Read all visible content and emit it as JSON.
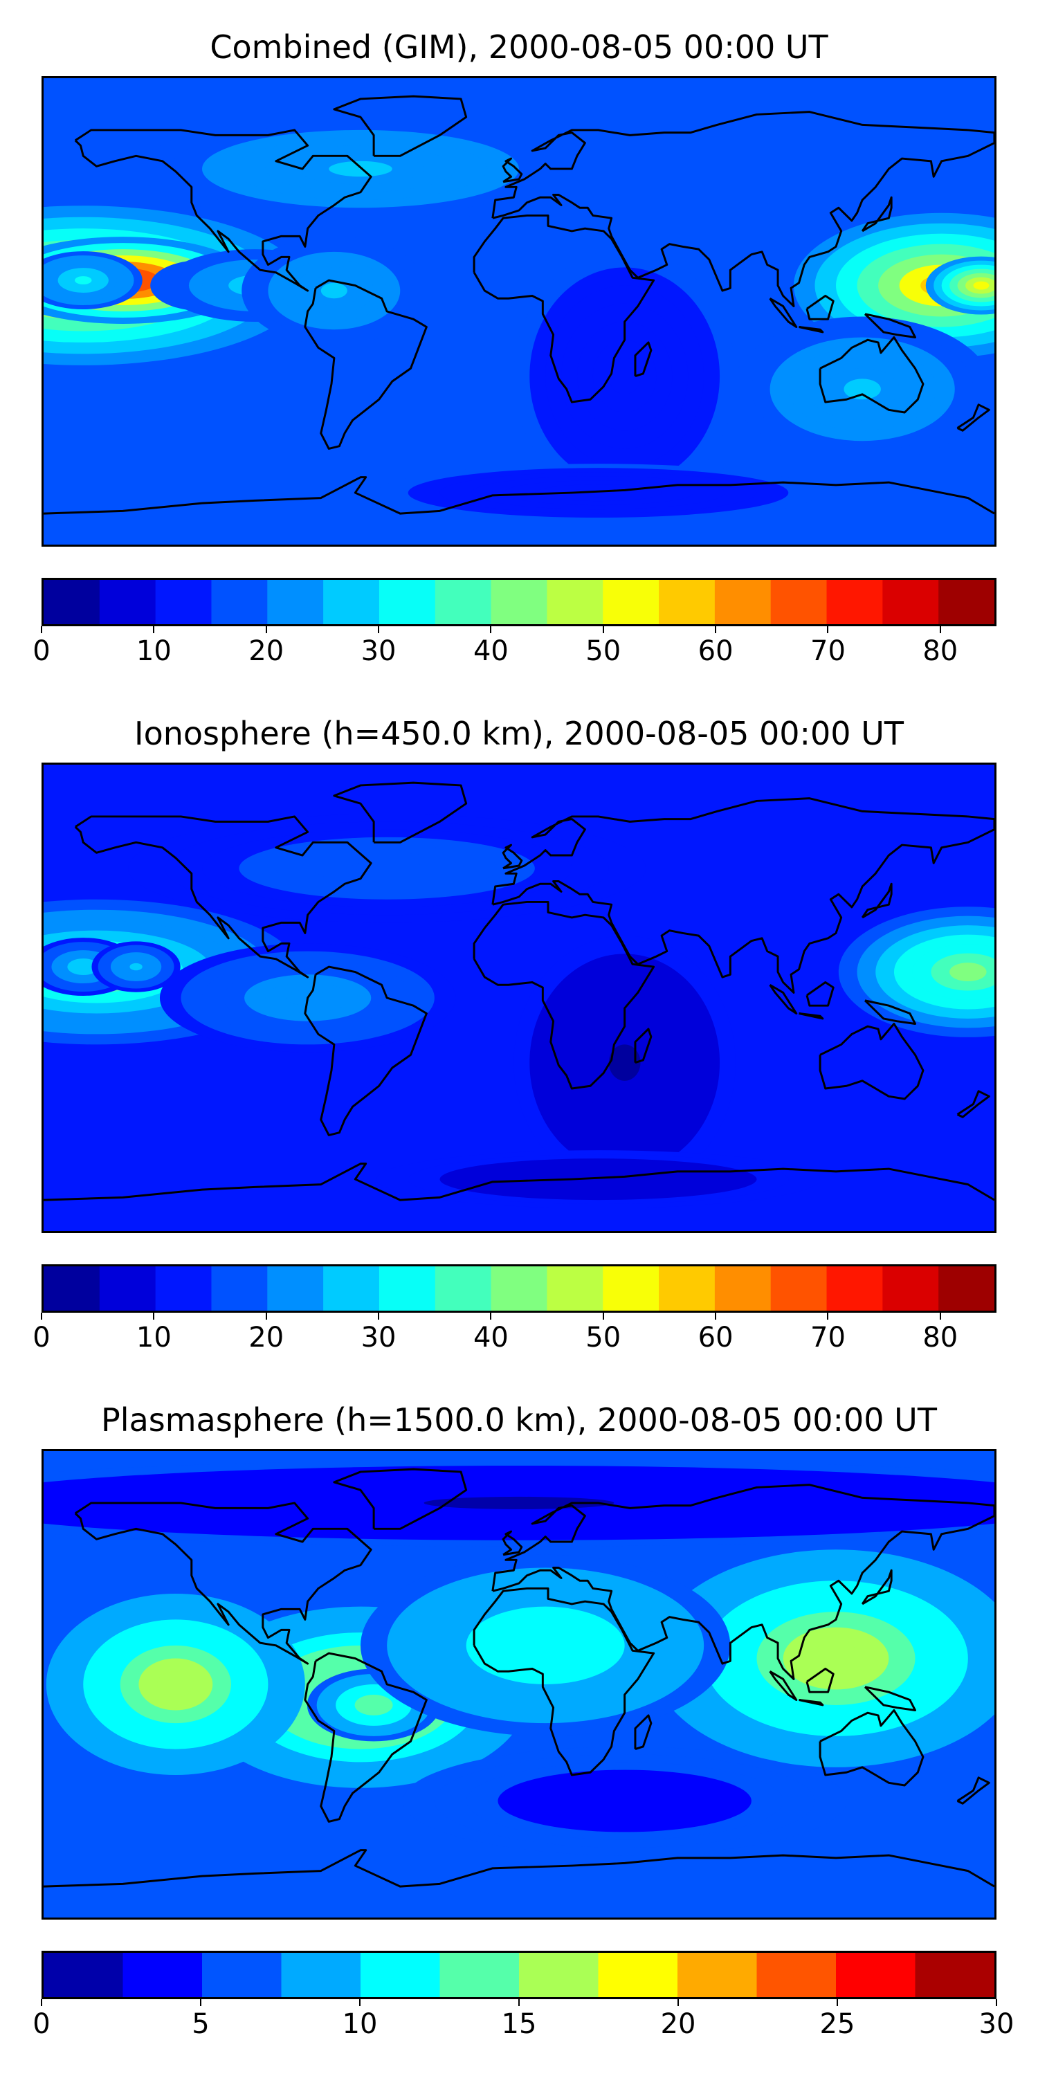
{
  "panels": [
    {
      "title": "Combined (GIM), 2000-08-05 00:00 UT",
      "colorbar": {
        "min": 0,
        "max": 85,
        "levels": [
          0,
          5,
          10,
          15,
          20,
          25,
          30,
          35,
          40,
          45,
          50,
          55,
          60,
          65,
          70,
          75,
          80,
          85
        ],
        "ticks": [
          0,
          10,
          20,
          30,
          40,
          50,
          60,
          70,
          80
        ]
      },
      "background": 16,
      "blobs": [
        {
          "lon": -165,
          "lat": 10,
          "rx": 60,
          "ry": 22,
          "v": 40
        },
        {
          "lon": -150,
          "lat": 12,
          "rx": 35,
          "ry": 12,
          "v": 62
        },
        {
          "lon": -165,
          "lat": 12,
          "rx": 16,
          "ry": 8,
          "v": 14
        },
        {
          "lon": -120,
          "lat": 10,
          "rx": 14,
          "ry": 7,
          "v": 10
        },
        {
          "lon": -100,
          "lat": 10,
          "rx": 25,
          "ry": 10,
          "v": 12
        },
        {
          "lon": -70,
          "lat": 8,
          "rx": 25,
          "ry": 15,
          "v": 10
        },
        {
          "lon": 160,
          "lat": 10,
          "rx": 40,
          "ry": 20,
          "v": 40
        },
        {
          "lon": 175,
          "lat": 10,
          "rx": 15,
          "ry": 8,
          "v": 35
        },
        {
          "lon": -60,
          "lat": 55,
          "rx": 60,
          "ry": 15,
          "v": 10
        },
        {
          "lon": 130,
          "lat": -30,
          "rx": 35,
          "ry": 20,
          "v": 10
        },
        {
          "lon": 40,
          "lat": -25,
          "rx": 30,
          "ry": 35,
          "v": -6
        },
        {
          "lon": 30,
          "lat": -70,
          "rx": 60,
          "ry": 8,
          "v": -6
        }
      ]
    },
    {
      "title": "Ionosphere  (h=450.0 km), 2000-08-05 00:00 UT",
      "colorbar": {
        "min": 0,
        "max": 85,
        "levels": [
          0,
          5,
          10,
          15,
          20,
          25,
          30,
          35,
          40,
          45,
          50,
          55,
          60,
          65,
          70,
          75,
          80,
          85
        ],
        "ticks": [
          0,
          10,
          20,
          30,
          40,
          50,
          60,
          70,
          80
        ]
      },
      "background": 12,
      "blobs": [
        {
          "lon": -160,
          "lat": 10,
          "rx": 55,
          "ry": 20,
          "v": 30
        },
        {
          "lon": -165,
          "lat": 12,
          "rx": 15,
          "ry": 8,
          "v": 16
        },
        {
          "lon": -145,
          "lat": 12,
          "rx": 12,
          "ry": 7,
          "v": 14
        },
        {
          "lon": -80,
          "lat": 0,
          "rx": 40,
          "ry": 15,
          "v": 12
        },
        {
          "lon": 170,
          "lat": 10,
          "rx": 35,
          "ry": 18,
          "v": 32
        },
        {
          "lon": -50,
          "lat": 50,
          "rx": 70,
          "ry": 15,
          "v": 6
        },
        {
          "lon": 40,
          "lat": -25,
          "rx": 30,
          "ry": 35,
          "v": -8
        },
        {
          "lon": 30,
          "lat": -70,
          "rx": 60,
          "ry": 8,
          "v": -6
        }
      ]
    },
    {
      "title": "Plasmasphere (h=1500.0 km), 2000-08-05 00:00 UT",
      "colorbar": {
        "min": 0,
        "max": 30,
        "levels": [
          0,
          2.5,
          5,
          7.5,
          10,
          12.5,
          15,
          17.5,
          20,
          22.5,
          25,
          27.5,
          30
        ],
        "ticks": [
          0,
          5,
          10,
          15,
          20,
          25,
          30
        ]
      },
      "background": 6,
      "blobs": [
        {
          "lon": -60,
          "lat": -5,
          "rx": 45,
          "ry": 25,
          "v": 12
        },
        {
          "lon": -55,
          "lat": -8,
          "rx": 18,
          "ry": 10,
          "v": 8
        },
        {
          "lon": -130,
          "lat": 0,
          "rx": 35,
          "ry": 25,
          "v": 11
        },
        {
          "lon": 120,
          "lat": 10,
          "rx": 50,
          "ry": 30,
          "v": 11
        },
        {
          "lon": 10,
          "lat": 15,
          "rx": 50,
          "ry": 25,
          "v": 6
        },
        {
          "lon": 0,
          "lat": 70,
          "rx": 180,
          "ry": 12,
          "v": -4
        },
        {
          "lon": 40,
          "lat": -45,
          "rx": 60,
          "ry": 15,
          "v": -2
        }
      ]
    }
  ]
}
